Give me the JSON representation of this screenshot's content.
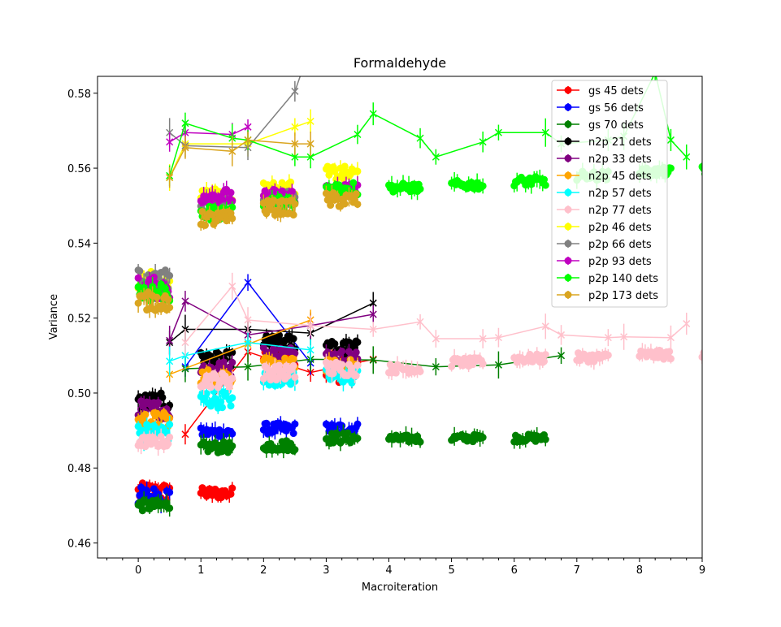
{
  "chart_data": {
    "type": "scatter",
    "title": "Formaldehyde",
    "xlabel": "Macroiteration",
    "ylabel": "Variance",
    "xlim": [
      -0.65,
      9.0
    ],
    "ylim": [
      0.456,
      0.5845
    ],
    "xticks": [
      0,
      1,
      2,
      3,
      4,
      5,
      6,
      7,
      8,
      9
    ],
    "yticks": [
      0.46,
      0.48,
      0.5,
      0.52,
      0.54,
      0.56,
      0.58
    ],
    "ytick_labels": [
      "0.46",
      "0.48",
      "0.50",
      "0.52",
      "0.54",
      "0.56",
      "0.58"
    ],
    "grid": false,
    "legend_position": "top-right",
    "series": [
      {
        "name": "gs 45 dets",
        "color": "#ff0000",
        "clusters": [
          [
            0,
            0.5,
            0.4735,
            0.0025
          ],
          [
            1,
            1.5,
            0.4733,
            0.0015
          ],
          [
            2,
            2.5,
            0.5088,
            0.003
          ],
          [
            3,
            3.5,
            0.5068,
            0.004
          ]
        ],
        "tail": [
          [
            0.75,
            0.489
          ],
          [
            1.75,
            0.511
          ],
          [
            2.75,
            0.5055
          ],
          [
            3.75,
            0.509
          ]
        ]
      },
      {
        "name": "gs 56 dets",
        "color": "#0000ff",
        "clusters": [
          [
            0,
            0.5,
            0.4725,
            0.0025
          ],
          [
            1,
            1.5,
            0.4895,
            0.0012
          ],
          [
            2,
            2.5,
            0.4905,
            0.0015
          ],
          [
            3,
            3.5,
            0.4905,
            0.0015
          ]
        ],
        "tail": [
          [
            0.75,
            0.507
          ],
          [
            1.75,
            0.5295
          ],
          [
            2.75,
            0.508
          ]
        ]
      },
      {
        "name": "gs 70 dets",
        "color": "#008000",
        "clusters": [
          [
            0,
            0.5,
            0.47,
            0.0015
          ],
          [
            1,
            1.5,
            0.4855,
            0.0015
          ],
          [
            2,
            2.5,
            0.486,
            0.0015
          ],
          [
            3,
            3.5,
            0.488,
            0.0015
          ],
          [
            4,
            4.5,
            0.4878,
            0.001
          ],
          [
            5,
            5.5,
            0.488,
            0.001
          ],
          [
            6,
            6.5,
            0.488,
            0.001
          ]
        ],
        "tail": [
          [
            0.75,
            0.5065
          ],
          [
            1.75,
            0.507
          ],
          [
            2.75,
            0.509
          ],
          [
            3.75,
            0.5088
          ],
          [
            4.75,
            0.507
          ],
          [
            5.75,
            0.5075
          ],
          [
            6.75,
            0.51
          ]
        ]
      },
      {
        "name": "n2p 21 dets",
        "color": "#000000",
        "clusters": [
          [
            0,
            0.5,
            0.4975,
            0.0025
          ],
          [
            1,
            1.5,
            0.509,
            0.002
          ],
          [
            2,
            2.5,
            0.5135,
            0.002
          ],
          [
            3,
            3.5,
            0.512,
            0.002
          ]
        ],
        "tail": [
          [
            0.5,
            0.5135
          ],
          [
            0.75,
            0.517
          ],
          [
            1.75,
            0.517
          ],
          [
            2.75,
            0.516
          ],
          [
            3.75,
            0.524
          ]
        ]
      },
      {
        "name": "n2p 33 dets",
        "color": "#800080",
        "clusters": [
          [
            0,
            0.5,
            0.4955,
            0.0025
          ],
          [
            1,
            1.5,
            0.5065,
            0.002
          ],
          [
            2,
            2.5,
            0.5105,
            0.002
          ],
          [
            3,
            3.5,
            0.5095,
            0.002
          ]
        ],
        "tail": [
          [
            0.5,
            0.514
          ],
          [
            0.75,
            0.5245
          ],
          [
            1.75,
            0.5155
          ],
          [
            2.75,
            0.518
          ],
          [
            3.75,
            0.521
          ]
        ]
      },
      {
        "name": "n2p 45 dets",
        "color": "#ffa500",
        "clusters": [
          [
            0,
            0.5,
            0.4925,
            0.0025
          ],
          [
            1,
            1.5,
            0.5045,
            0.002
          ],
          [
            2,
            2.5,
            0.5075,
            0.002
          ],
          [
            3,
            3.5,
            0.507,
            0.002
          ]
        ],
        "tail": [
          [
            0.5,
            0.505
          ],
          [
            1.75,
            0.513
          ],
          [
            2.75,
            0.5195
          ]
        ]
      },
      {
        "name": "n2p 57 dets",
        "color": "#00ffff",
        "clusters": [
          [
            0,
            0.5,
            0.4895,
            0.0025
          ],
          [
            1,
            1.5,
            0.4985,
            0.0025
          ],
          [
            2,
            2.5,
            0.504,
            0.002
          ],
          [
            3,
            3.5,
            0.5045,
            0.002
          ]
        ],
        "tail": [
          [
            0.5,
            0.5085
          ],
          [
            0.75,
            0.51
          ],
          [
            1.75,
            0.5135
          ],
          [
            2.75,
            0.5115
          ]
        ]
      },
      {
        "name": "n2p 77 dets",
        "color": "#ffc0cb",
        "clusters": [
          [
            0,
            0.5,
            0.487,
            0.0015
          ],
          [
            1,
            1.5,
            0.5035,
            0.002
          ],
          [
            2,
            2.5,
            0.5055,
            0.002
          ],
          [
            3,
            3.5,
            0.5065,
            0.002
          ],
          [
            4,
            4.5,
            0.5065,
            0.0012
          ],
          [
            5,
            5.5,
            0.5082,
            0.0012
          ],
          [
            6,
            6.5,
            0.5092,
            0.0012
          ],
          [
            7,
            7.5,
            0.5095,
            0.0012
          ],
          [
            8,
            8.5,
            0.5102,
            0.0012
          ],
          [
            9,
            9.5,
            0.5102,
            0.0012
          ]
        ],
        "tail": [
          [
            0.75,
            0.5135
          ],
          [
            1.5,
            0.5285
          ],
          [
            1.75,
            0.5195
          ],
          [
            2.75,
            0.518
          ],
          [
            3.75,
            0.517
          ],
          [
            4.5,
            0.519
          ],
          [
            4.75,
            0.5145
          ],
          [
            5.5,
            0.5145
          ],
          [
            5.75,
            0.5148
          ],
          [
            6.5,
            0.5178
          ],
          [
            6.75,
            0.5155
          ],
          [
            7.5,
            0.5148
          ],
          [
            7.75,
            0.515
          ],
          [
            8.5,
            0.5148
          ],
          [
            8.75,
            0.5185
          ]
        ]
      },
      {
        "name": "p2p 46 dets",
        "color": "#ffff00",
        "clusters": [
          [
            0,
            0.5,
            0.5295,
            0.003
          ],
          [
            1,
            1.5,
            0.5525,
            0.002
          ],
          [
            2,
            2.5,
            0.5545,
            0.002
          ],
          [
            3,
            3.5,
            0.5585,
            0.002
          ]
        ],
        "tail": [
          [
            0.5,
            0.5575
          ],
          [
            0.75,
            0.5665
          ],
          [
            1.75,
            0.5665
          ],
          [
            2.5,
            0.571
          ],
          [
            2.75,
            0.5725
          ]
        ]
      },
      {
        "name": "p2p 66 dets",
        "color": "#808080",
        "clusters": [
          [
            0,
            0.5,
            0.53,
            0.003
          ],
          [
            1,
            1.5,
            0.5505,
            0.002
          ],
          [
            2,
            2.5,
            0.552,
            0.002
          ]
        ],
        "tail": [
          [
            0.5,
            0.5695
          ],
          [
            0.75,
            0.566
          ],
          [
            1.75,
            0.5655
          ],
          [
            2.5,
            0.5805
          ],
          [
            2.75,
            0.5925
          ]
        ]
      },
      {
        "name": "p2p 93 dets",
        "color": "#c000c0",
        "clusters": [
          [
            0,
            0.5,
            0.528,
            0.003
          ],
          [
            1,
            1.5,
            0.5525,
            0.002
          ],
          [
            2,
            2.5,
            0.5525,
            0.002
          ],
          [
            3,
            3.5,
            0.554,
            0.002
          ]
        ],
        "tail": [
          [
            0.5,
            0.567
          ],
          [
            0.75,
            0.5695
          ],
          [
            1.5,
            0.569
          ],
          [
            1.75,
            0.571
          ]
        ]
      },
      {
        "name": "p2p 140 dets",
        "color": "#00ff00",
        "clusters": [
          [
            0,
            0.5,
            0.527,
            0.003
          ],
          [
            1,
            1.5,
            0.548,
            0.002
          ],
          [
            2,
            2.5,
            0.5505,
            0.002
          ],
          [
            3,
            3.5,
            0.5545,
            0.002
          ],
          [
            4,
            4.5,
            0.5548,
            0.0012
          ],
          [
            5,
            5.5,
            0.5555,
            0.0012
          ],
          [
            6,
            6.5,
            0.5565,
            0.0012
          ],
          [
            7,
            7.5,
            0.558,
            0.0012
          ],
          [
            8,
            8.5,
            0.559,
            0.0012
          ],
          [
            9,
            9.5,
            0.5595,
            0.0012
          ]
        ],
        "tail": [
          [
            0.5,
            0.558
          ],
          [
            0.75,
            0.572
          ],
          [
            1.5,
            0.568
          ],
          [
            1.75,
            0.5675
          ],
          [
            2.5,
            0.563
          ],
          [
            2.75,
            0.563
          ],
          [
            3.5,
            0.569
          ],
          [
            3.75,
            0.5745
          ],
          [
            4.5,
            0.568
          ],
          [
            4.75,
            0.563
          ],
          [
            5.5,
            0.567
          ],
          [
            5.75,
            0.5695
          ],
          [
            6.5,
            0.5695
          ],
          [
            6.75,
            0.5665
          ],
          [
            7.5,
            0.5675
          ],
          [
            7.75,
            0.5685
          ],
          [
            8.25,
            0.5855
          ],
          [
            8.5,
            0.5675
          ],
          [
            8.75,
            0.563
          ]
        ]
      },
      {
        "name": "p2p 173 dets",
        "color": "#daa520",
        "clusters": [
          [
            0,
            0.5,
            0.5245,
            0.0025
          ],
          [
            1,
            1.5,
            0.5465,
            0.002
          ],
          [
            2,
            2.5,
            0.5495,
            0.002
          ],
          [
            3,
            3.5,
            0.5515,
            0.002
          ]
        ],
        "tail": [
          [
            0.5,
            0.5575
          ],
          [
            0.75,
            0.5655
          ],
          [
            1.5,
            0.5645
          ],
          [
            1.75,
            0.5675
          ],
          [
            2.5,
            0.5665
          ],
          [
            2.75,
            0.5665
          ]
        ]
      }
    ]
  }
}
